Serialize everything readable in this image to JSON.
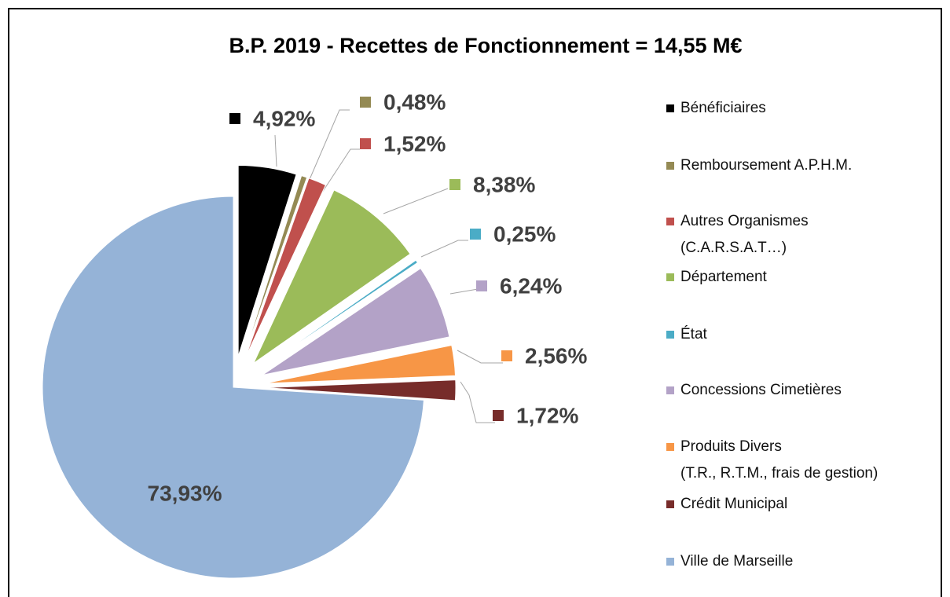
{
  "chart_data": {
    "type": "pie",
    "title": "B.P. 2019 - Recettes de Fonctionnement = 14,55 M€",
    "categories": [
      "Bénéficiaires",
      "Remboursement A.P.H.M.",
      "Autres Organismes\n(C.A.R.S.A.T…)",
      "Département",
      "État",
      "Concessions Cimetières",
      "Produits Divers\n(T.R., R.T.M., frais de gestion)",
      "Crédit Municipal",
      "Ville de Marseille"
    ],
    "values": [
      4.92,
      0.48,
      1.52,
      8.38,
      0.25,
      6.24,
      2.56,
      1.72,
      73.93
    ],
    "value_labels": [
      "4,92%",
      "0,48%",
      "1,52%",
      "8,38%",
      "0,25%",
      "6,24%",
      "2,56%",
      "1,72%",
      "73,93%"
    ],
    "colors": [
      "#000000",
      "#948a54",
      "#c0504d",
      "#9bbb59",
      "#4bacc6",
      "#b3a2c7",
      "#f79646",
      "#772c2a",
      "#95b3d7"
    ],
    "legend": "right"
  }
}
